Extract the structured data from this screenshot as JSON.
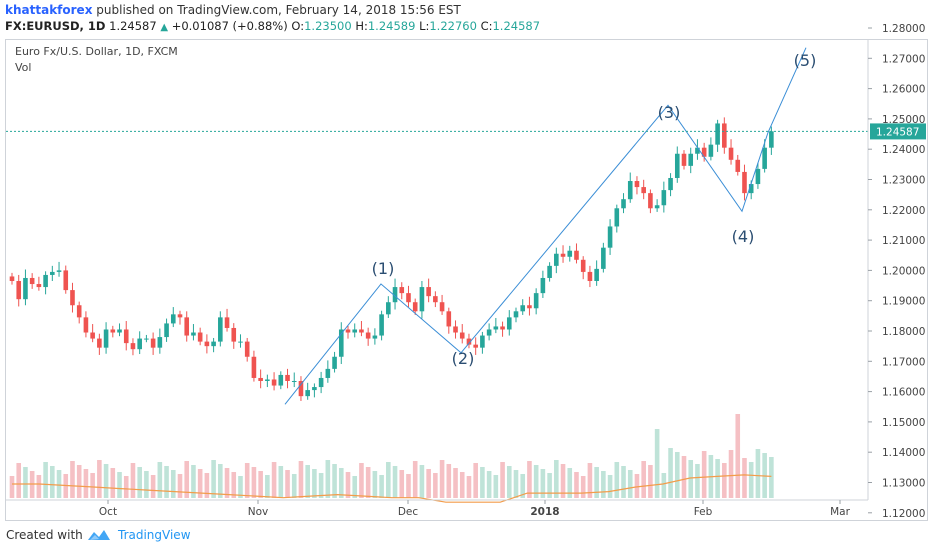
{
  "header": {
    "author": "khattakforex",
    "published": "published on TradingView.com, February 14, 2018 15:56 EST",
    "symbol": "FX:EURUSD, 1D",
    "last": "1.24587",
    "change": "+0.01087 (+0.88%)",
    "o_label": "O:",
    "o": "1.23500",
    "h_label": "H:",
    "h": "1.24589",
    "l_label": "L:",
    "l": "1.22760",
    "c_label": "C:",
    "c": "1.24587"
  },
  "legend": {
    "title": "Euro Fx/U.S. Dollar, 1D, FXCM",
    "vol": "Vol"
  },
  "footer": {
    "created_with": "Created with",
    "brand": "TradingView"
  },
  "colors": {
    "up": "#26a69a",
    "down": "#ef5350",
    "up_volume": "#bfe3d8",
    "down_volume": "#f5c0c4",
    "volume_ma": "#f39c4a",
    "wave": "#3b8ed6",
    "last_price_line": "#26a69a"
  },
  "chart_data": {
    "type": "candlestick",
    "symbol": "EURUSD",
    "timeframe": "1D",
    "ylim": [
      1.115,
      1.286
    ],
    "y_ticks": [
      "1.28000",
      "1.27000",
      "1.26000",
      "1.25000",
      "1.24000",
      "1.23000",
      "1.22000",
      "1.21000",
      "1.20000",
      "1.19000",
      "1.18000",
      "1.17000",
      "1.16000",
      "1.15000",
      "1.14000",
      "1.13000",
      "1.12000"
    ],
    "x_ticks": [
      "Oct",
      "Nov",
      "Dec",
      "2018",
      "Feb",
      "Mar"
    ],
    "last_price": 1.24587,
    "last_price_label": "1.24587",
    "closes": [
      1.1965,
      1.1905,
      1.1975,
      1.1955,
      1.1945,
      1.1985,
      1.1995,
      1.2,
      1.1935,
      1.1885,
      1.1845,
      1.1795,
      1.1775,
      1.1745,
      1.1805,
      1.1795,
      1.1805,
      1.176,
      1.174,
      1.1775,
      1.1775,
      1.1745,
      1.178,
      1.1825,
      1.1855,
      1.1845,
      1.1785,
      1.1795,
      1.1765,
      1.175,
      1.1765,
      1.1845,
      1.181,
      1.1765,
      1.1765,
      1.1715,
      1.1645,
      1.1635,
      1.164,
      1.162,
      1.1655,
      1.1635,
      1.1635,
      1.1585,
      1.1605,
      1.1615,
      1.1645,
      1.1675,
      1.1715,
      1.1805,
      1.1795,
      1.1805,
      1.1795,
      1.1775,
      1.1785,
      1.1855,
      1.1895,
      1.1945,
      1.1925,
      1.1895,
      1.1865,
      1.1945,
      1.1915,
      1.1895,
      1.1865,
      1.1815,
      1.1795,
      1.1775,
      1.1755,
      1.1745,
      1.1785,
      1.1805,
      1.1815,
      1.1805,
      1.1845,
      1.1865,
      1.1885,
      1.1875,
      1.1925,
      1.1975,
      1.2015,
      1.2055,
      1.2045,
      1.2065,
      1.2035,
      1.1995,
      1.1965,
      1.2005,
      1.2075,
      1.2145,
      1.2205,
      1.2235,
      1.2295,
      1.2275,
      1.2255,
      1.2205,
      1.2215,
      1.2265,
      1.2305,
      1.2385,
      1.2345,
      1.2385,
      1.2405,
      1.2375,
      1.2415,
      1.2485,
      1.2405,
      1.2365,
      1.2325,
      1.2255,
      1.2285,
      1.2335,
      1.2405,
      1.2459
    ],
    "marked_closes": {
      "wave_1_close": 1.1945,
      "wave_4_close": 1.2255
    },
    "volume_ma": [
      1.1295,
      1.1295,
      1.129,
      1.1285,
      1.128,
      1.1275,
      1.127,
      1.1265,
      1.126,
      1.1255,
      1.125,
      1.1255,
      1.126,
      1.1255,
      1.125,
      1.125,
      1.1235,
      1.1235,
      1.1235,
      1.1265,
      1.1265,
      1.1265,
      1.127,
      1.1285,
      1.1295,
      1.1315,
      1.132,
      1.1325,
      1.132
    ],
    "annotations": [
      {
        "label": "(1)",
        "price": 1.1955
      },
      {
        "label": "(2)",
        "price": 1.1728
      },
      {
        "label": "(3)",
        "price": 1.2545
      },
      {
        "label": "(4)",
        "price": 1.2195
      },
      {
        "label": "(5)",
        "price": 1.2735
      }
    ],
    "wave_path_prices": [
      1.1558,
      1.1955,
      1.1728,
      1.2545,
      1.2195,
      1.2455,
      1.2735
    ]
  }
}
